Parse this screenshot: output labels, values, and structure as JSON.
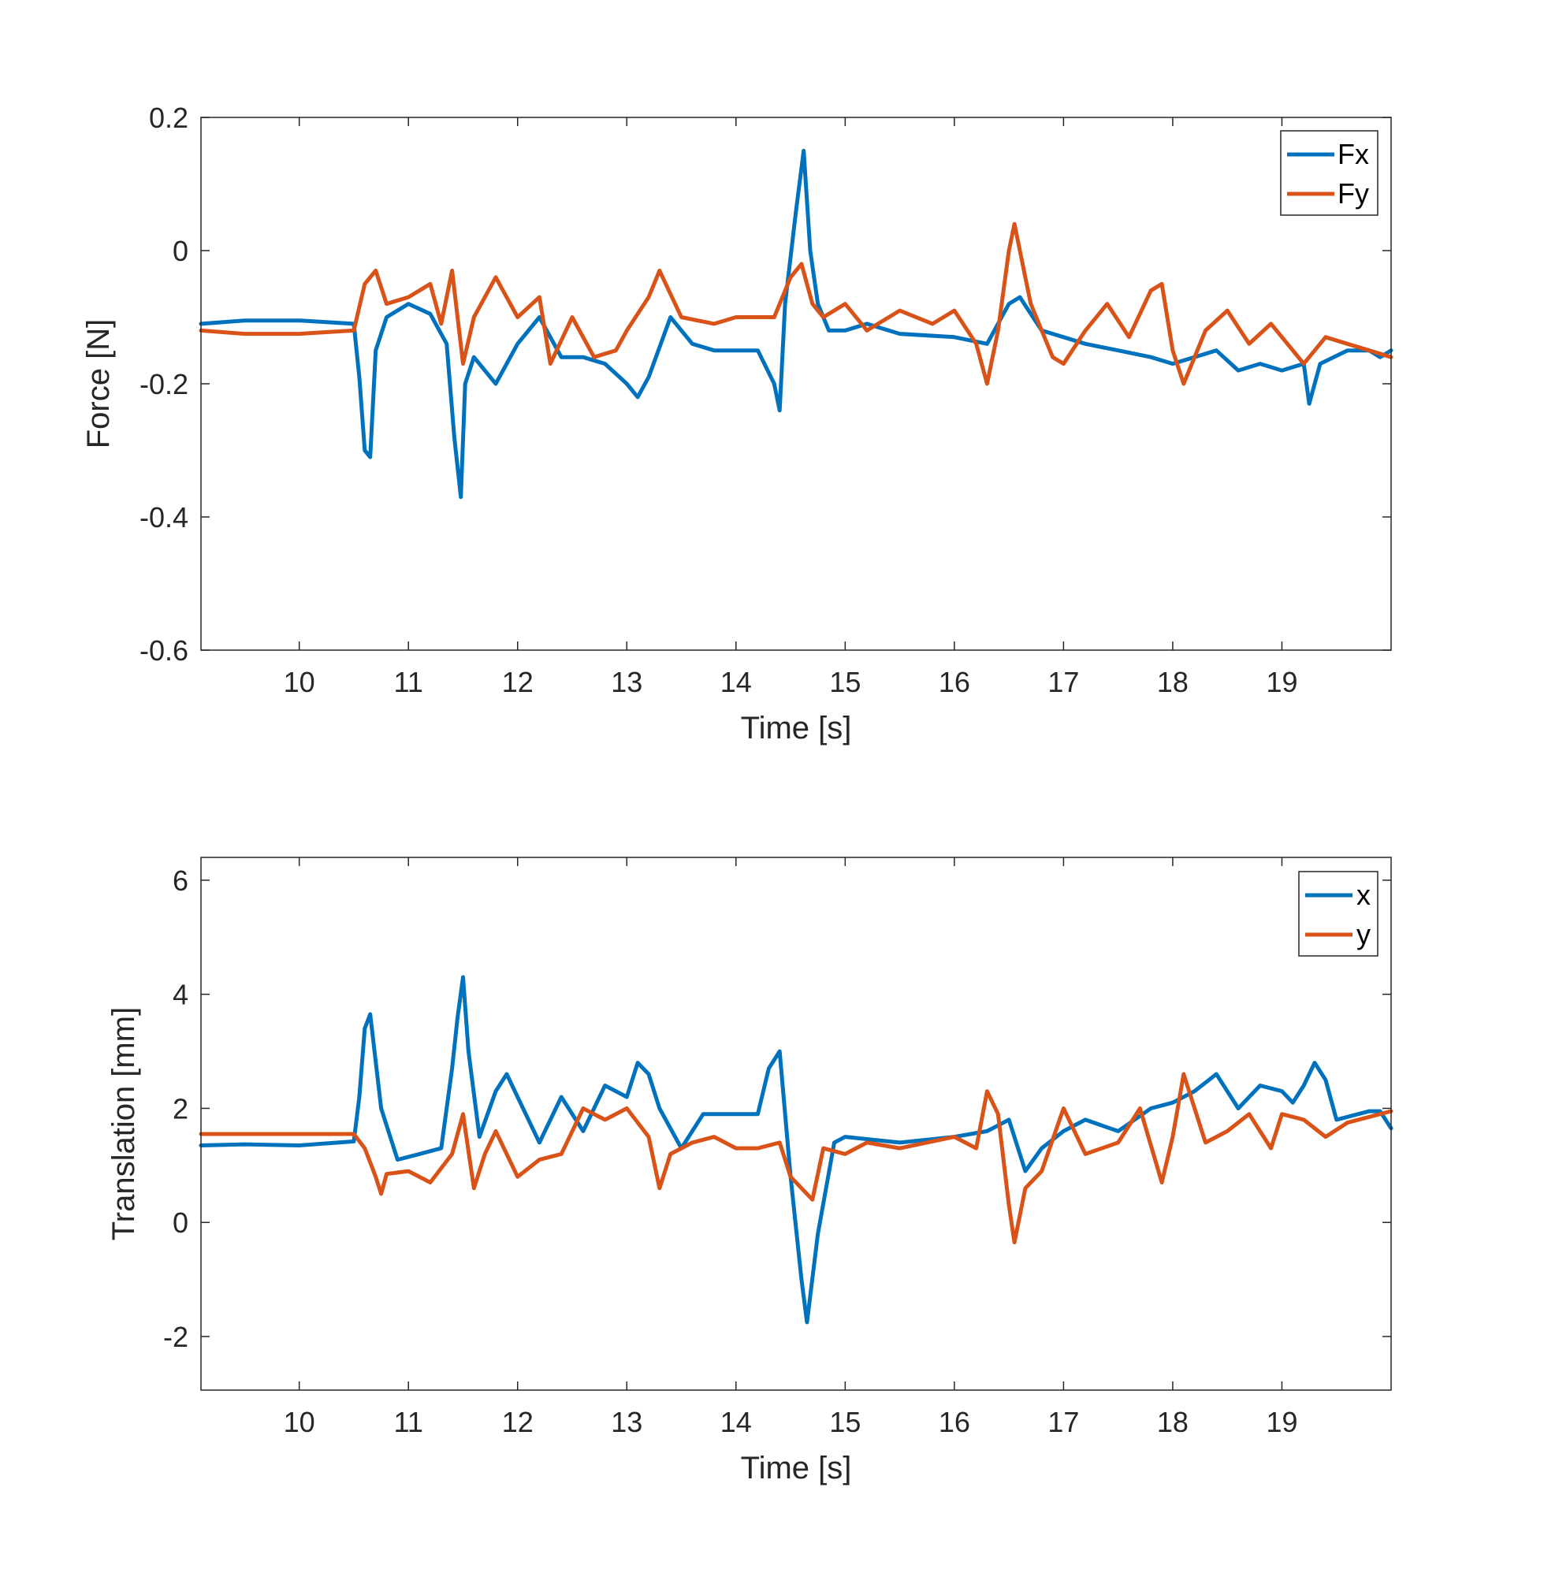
{
  "chart_data": [
    {
      "type": "line",
      "xlabel": "Time [s]",
      "ylabel": "Force [N]",
      "xlim": [
        9.1,
        20.0
      ],
      "ylim": [
        -0.6,
        0.2
      ],
      "xticks": [
        10,
        11,
        12,
        13,
        14,
        15,
        16,
        17,
        18,
        19
      ],
      "yticks": [
        0.2,
        0,
        -0.2,
        -0.4,
        -0.6
      ],
      "ytick_labels": [
        "0.2",
        "0",
        "-0.2",
        "-0.4",
        "-0.6"
      ],
      "legend_position": "top-right",
      "series": [
        {
          "name": "Fx",
          "color": "#0072BD",
          "x": [
            9.1,
            9.5,
            10.0,
            10.5,
            10.55,
            10.6,
            10.65,
            10.7,
            10.8,
            11.0,
            11.2,
            11.35,
            11.42,
            11.48,
            11.52,
            11.6,
            11.8,
            12.0,
            12.2,
            12.4,
            12.6,
            12.8,
            13.0,
            13.1,
            13.2,
            13.4,
            13.6,
            13.8,
            14.0,
            14.2,
            14.35,
            14.4,
            14.45,
            14.55,
            14.62,
            14.68,
            14.75,
            14.85,
            15.0,
            15.2,
            15.5,
            16.0,
            16.3,
            16.5,
            16.6,
            16.8,
            17.0,
            17.2,
            17.5,
            17.8,
            18.0,
            18.2,
            18.4,
            18.6,
            18.8,
            19.0,
            19.2,
            19.25,
            19.35,
            19.6,
            19.8,
            19.9,
            20.0
          ],
          "values": [
            -0.11,
            -0.105,
            -0.105,
            -0.11,
            -0.19,
            -0.3,
            -0.31,
            -0.15,
            -0.1,
            -0.08,
            -0.095,
            -0.14,
            -0.28,
            -0.37,
            -0.2,
            -0.16,
            -0.2,
            -0.14,
            -0.1,
            -0.16,
            -0.16,
            -0.17,
            -0.2,
            -0.22,
            -0.19,
            -0.1,
            -0.14,
            -0.15,
            -0.15,
            -0.15,
            -0.2,
            -0.24,
            -0.08,
            0.06,
            0.15,
            0.0,
            -0.08,
            -0.12,
            -0.12,
            -0.11,
            -0.125,
            -0.13,
            -0.14,
            -0.08,
            -0.07,
            -0.12,
            -0.13,
            -0.14,
            -0.15,
            -0.16,
            -0.17,
            -0.16,
            -0.15,
            -0.18,
            -0.17,
            -0.18,
            -0.17,
            -0.23,
            -0.17,
            -0.15,
            -0.15,
            -0.16,
            -0.15
          ]
        },
        {
          "name": "Fy",
          "color": "#D95319",
          "x": [
            9.1,
            9.5,
            10.0,
            10.5,
            10.6,
            10.7,
            10.8,
            11.0,
            11.2,
            11.3,
            11.4,
            11.5,
            11.6,
            11.8,
            12.0,
            12.2,
            12.3,
            12.5,
            12.7,
            12.9,
            13.0,
            13.2,
            13.3,
            13.5,
            13.8,
            14.0,
            14.2,
            14.35,
            14.5,
            14.6,
            14.7,
            14.8,
            15.0,
            15.2,
            15.5,
            15.8,
            16.0,
            16.2,
            16.3,
            16.4,
            16.5,
            16.55,
            16.7,
            16.9,
            17.0,
            17.2,
            17.4,
            17.6,
            17.8,
            17.9,
            18.0,
            18.1,
            18.3,
            18.5,
            18.7,
            18.9,
            19.0,
            19.2,
            19.4,
            19.6,
            19.8,
            20.0
          ],
          "values": [
            -0.12,
            -0.125,
            -0.125,
            -0.12,
            -0.05,
            -0.03,
            -0.08,
            -0.07,
            -0.05,
            -0.11,
            -0.03,
            -0.17,
            -0.1,
            -0.04,
            -0.1,
            -0.07,
            -0.17,
            -0.1,
            -0.16,
            -0.15,
            -0.12,
            -0.07,
            -0.03,
            -0.1,
            -0.11,
            -0.1,
            -0.1,
            -0.1,
            -0.04,
            -0.02,
            -0.08,
            -0.1,
            -0.08,
            -0.12,
            -0.09,
            -0.11,
            -0.09,
            -0.14,
            -0.2,
            -0.12,
            0.0,
            0.04,
            -0.08,
            -0.16,
            -0.17,
            -0.12,
            -0.08,
            -0.13,
            -0.06,
            -0.05,
            -0.15,
            -0.2,
            -0.12,
            -0.09,
            -0.14,
            -0.11,
            -0.13,
            -0.17,
            -0.13,
            -0.14,
            -0.15,
            -0.16
          ]
        }
      ]
    },
    {
      "type": "line",
      "xlabel": "Time [s]",
      "ylabel": "Translation [mm]",
      "xlim": [
        9.1,
        20.0
      ],
      "ylim": [
        -2.94,
        6.4
      ],
      "xticks": [
        10,
        11,
        12,
        13,
        14,
        15,
        16,
        17,
        18,
        19
      ],
      "yticks": [
        6,
        4,
        2,
        0,
        -2
      ],
      "ytick_labels": [
        "6",
        "4",
        "2",
        "0",
        "-2"
      ],
      "legend_position": "top-right",
      "series": [
        {
          "name": "x",
          "color": "#0072BD",
          "x": [
            9.1,
            9.5,
            10.0,
            10.5,
            10.55,
            10.6,
            10.65,
            10.75,
            10.9,
            11.1,
            11.3,
            11.4,
            11.45,
            11.5,
            11.55,
            11.65,
            11.8,
            11.9,
            12.0,
            12.2,
            12.4,
            12.6,
            12.8,
            13.0,
            13.1,
            13.2,
            13.3,
            13.5,
            13.7,
            14.0,
            14.2,
            14.3,
            14.4,
            14.5,
            14.6,
            14.65,
            14.75,
            14.9,
            15.0,
            15.5,
            16.0,
            16.3,
            16.5,
            16.65,
            16.8,
            17.0,
            17.2,
            17.5,
            17.8,
            18.0,
            18.2,
            18.4,
            18.6,
            18.8,
            19.0,
            19.1,
            19.2,
            19.3,
            19.4,
            19.5,
            19.8,
            19.9,
            20.0
          ],
          "values": [
            1.35,
            1.37,
            1.35,
            1.42,
            2.2,
            3.4,
            3.65,
            2.0,
            1.1,
            1.2,
            1.3,
            2.7,
            3.6,
            4.3,
            3.0,
            1.5,
            2.3,
            2.6,
            2.2,
            1.4,
            2.2,
            1.6,
            2.4,
            2.2,
            2.8,
            2.6,
            2.0,
            1.3,
            1.9,
            1.9,
            1.9,
            2.7,
            3.0,
            0.8,
            -1.0,
            -1.75,
            -0.2,
            1.4,
            1.5,
            1.4,
            1.5,
            1.6,
            1.8,
            0.9,
            1.3,
            1.6,
            1.8,
            1.6,
            2.0,
            2.1,
            2.3,
            2.6,
            2.0,
            2.4,
            2.3,
            2.1,
            2.4,
            2.8,
            2.5,
            1.8,
            1.95,
            1.95,
            1.65
          ]
        },
        {
          "name": "y",
          "color": "#D95319",
          "x": [
            9.1,
            9.5,
            10.0,
            10.5,
            10.6,
            10.7,
            10.75,
            10.8,
            11.0,
            11.2,
            11.4,
            11.5,
            11.6,
            11.7,
            11.8,
            12.0,
            12.2,
            12.4,
            12.6,
            12.8,
            13.0,
            13.2,
            13.3,
            13.4,
            13.6,
            13.8,
            14.0,
            14.2,
            14.4,
            14.5,
            14.6,
            14.7,
            14.8,
            15.0,
            15.2,
            15.5,
            16.0,
            16.2,
            16.3,
            16.4,
            16.5,
            16.55,
            16.65,
            16.8,
            17.0,
            17.2,
            17.5,
            17.7,
            17.9,
            18.0,
            18.1,
            18.3,
            18.5,
            18.7,
            18.9,
            19.0,
            19.2,
            19.4,
            19.6,
            19.8,
            20.0
          ],
          "values": [
            1.55,
            1.55,
            1.55,
            1.55,
            1.3,
            0.8,
            0.5,
            0.85,
            0.9,
            0.7,
            1.2,
            1.9,
            0.6,
            1.2,
            1.6,
            0.8,
            1.1,
            1.2,
            2.0,
            1.8,
            2.0,
            1.5,
            0.6,
            1.2,
            1.4,
            1.5,
            1.3,
            1.3,
            1.4,
            0.8,
            0.6,
            0.4,
            1.3,
            1.2,
            1.4,
            1.3,
            1.5,
            1.3,
            2.3,
            1.9,
            0.3,
            -0.35,
            0.6,
            0.9,
            2.0,
            1.2,
            1.4,
            2.0,
            0.7,
            1.5,
            2.6,
            1.4,
            1.6,
            1.9,
            1.3,
            1.9,
            1.8,
            1.5,
            1.75,
            1.85,
            1.95
          ]
        }
      ]
    }
  ]
}
